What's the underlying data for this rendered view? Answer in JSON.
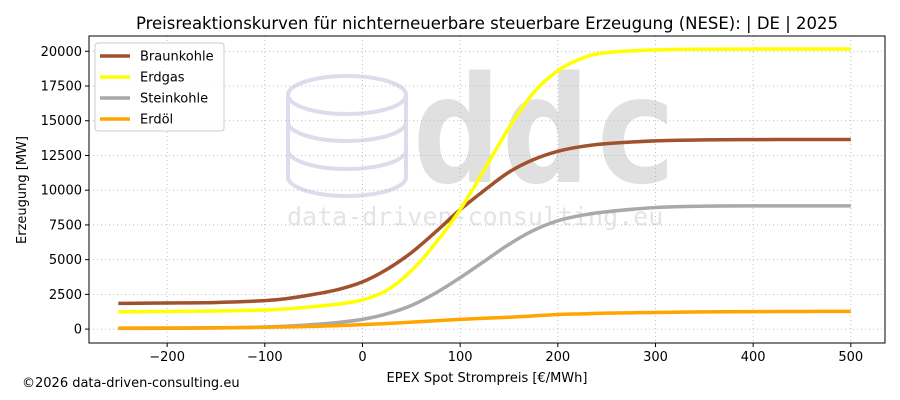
{
  "chart_data": {
    "type": "line",
    "title": "Preisreaktionskurven für nichterneuerbare steuerbare Erzeugung (NESE): | DE | 2025",
    "xlabel": "EPEX Spot Strompreis [€/MWh]",
    "ylabel": "Erzeugung [MW]",
    "xlim": [
      -280,
      535
    ],
    "ylim": [
      -1000,
      21100
    ],
    "x_ticks": [
      -200,
      -100,
      0,
      100,
      200,
      300,
      400,
      500
    ],
    "x_tick_labels": [
      "−200",
      "−100",
      "0",
      "100",
      "200",
      "300",
      "400",
      "500"
    ],
    "y_ticks": [
      0,
      2500,
      5000,
      7500,
      10000,
      12500,
      15000,
      17500,
      20000
    ],
    "y_tick_labels": [
      "0",
      "2500",
      "5000",
      "7500",
      "10000",
      "12500",
      "15000",
      "17500",
      "20000"
    ],
    "grid": true,
    "legend_position": "top-left",
    "x": [
      -250,
      -200,
      -150,
      -100,
      -75,
      -50,
      -25,
      0,
      25,
      50,
      75,
      100,
      125,
      150,
      175,
      200,
      225,
      250,
      300,
      350,
      400,
      450,
      500
    ],
    "series": [
      {
        "name": "Braunkohle",
        "color": "#a0522d",
        "values": [
          1850,
          1880,
          1920,
          2050,
          2220,
          2500,
          2850,
          3400,
          4300,
          5500,
          7000,
          8600,
          10000,
          11300,
          12200,
          12800,
          13150,
          13350,
          13550,
          13620,
          13640,
          13650,
          13650
        ]
      },
      {
        "name": "Erdgas",
        "color": "#ffff00",
        "values": [
          1250,
          1270,
          1300,
          1380,
          1470,
          1620,
          1800,
          2100,
          2800,
          4200,
          6200,
          8600,
          11500,
          14500,
          17000,
          18600,
          19500,
          19900,
          20100,
          20150,
          20160,
          20160,
          20160
        ]
      },
      {
        "name": "Steinkohle",
        "color": "#a9a9a9",
        "values": [
          50,
          60,
          80,
          150,
          220,
          330,
          480,
          700,
          1100,
          1700,
          2600,
          3700,
          4900,
          6100,
          7100,
          7800,
          8200,
          8450,
          8750,
          8850,
          8870,
          8870,
          8870
        ]
      },
      {
        "name": "Erdöl",
        "color": "#ffa500",
        "values": [
          70,
          80,
          100,
          130,
          160,
          200,
          250,
          320,
          400,
          500,
          600,
          700,
          780,
          850,
          950,
          1050,
          1100,
          1150,
          1200,
          1240,
          1260,
          1270,
          1280
        ]
      }
    ]
  },
  "watermark": {
    "logo_text": "ddc",
    "url_text": "data-driven-consulting.eu"
  },
  "footer": {
    "copyright": "©2026 data-driven-consulting.eu"
  }
}
